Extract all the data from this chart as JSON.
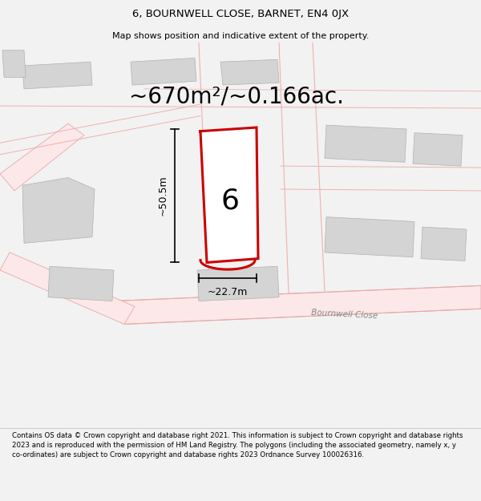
{
  "title": "6, BOURNWELL CLOSE, BARNET, EN4 0JX",
  "subtitle": "Map shows position and indicative extent of the property.",
  "area_text": "~670m²/~0.166ac.",
  "width_label": "~22.7m",
  "height_label": "~50.5m",
  "number_label": "6",
  "road_label": "Bournwell Close",
  "footer": "Contains OS data © Crown copyright and database right 2021. This information is subject to Crown copyright and database rights 2023 and is reproduced with the permission of HM Land Registry. The polygons (including the associated geometry, namely x, y co-ordinates) are subject to Crown copyright and database rights 2023 Ordnance Survey 100026316.",
  "bg_color": "#f2f2f2",
  "map_bg": "#ffffff",
  "plot_outline_color": "#cc0000",
  "building_color": "#d4d4d4",
  "road_fill": "#fce8e8",
  "road_edge": "#e8a8a8",
  "pink_line": "#f0b0b0",
  "title_fontsize": 9.5,
  "subtitle_fontsize": 8,
  "area_fontsize": 20,
  "label_fontsize": 9,
  "footer_fontsize": 6.2,
  "road_label_fontsize": 7.5
}
